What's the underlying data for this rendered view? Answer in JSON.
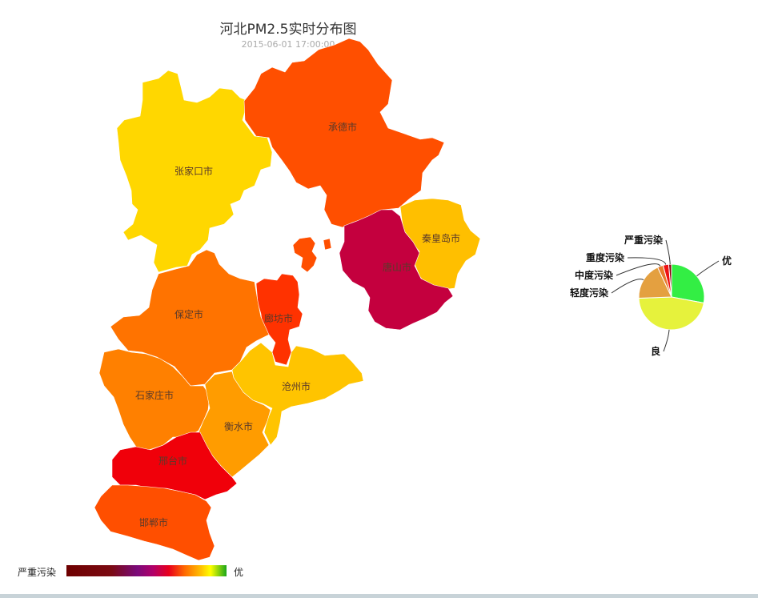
{
  "chart_data": [
    {
      "type": "map",
      "title": "河北PM2.5实时分布图",
      "subtitle": "2015-06-01 17:00:00",
      "regions": [
        {
          "name": "张家口市",
          "color": "#ffd700"
        },
        {
          "name": "承德市",
          "color": "#ff4f00"
        },
        {
          "name": "秦皇岛市",
          "color": "#ffbf00"
        },
        {
          "name": "唐山市",
          "color": "#c4003e"
        },
        {
          "name": "廊坊市",
          "color": "#ff3200"
        },
        {
          "name": "保定市",
          "color": "#ff7300"
        },
        {
          "name": "沧州市",
          "color": "#ffc400"
        },
        {
          "name": "石家庄市",
          "color": "#ff8000"
        },
        {
          "name": "衡水市",
          "color": "#ff9c00"
        },
        {
          "name": "邢台市",
          "color": "#f0000a"
        },
        {
          "name": "邯郸市",
          "color": "#ff4f00"
        }
      ],
      "visual_map": {
        "min_label": "严重污染",
        "max_label": "优"
      }
    },
    {
      "type": "pie",
      "slices": [
        {
          "name": "优",
          "value": 3,
          "color": "#33ee44"
        },
        {
          "name": "良",
          "value": 5,
          "color": "#e6f23c"
        },
        {
          "name": "轻度污染",
          "value": 2,
          "color": "#e4a040"
        },
        {
          "name": "中度污染",
          "value": 0.3,
          "color": "#e87a2a"
        },
        {
          "name": "重度污染",
          "value": 0.3,
          "color": "#ee1111"
        },
        {
          "name": "严重污染",
          "value": 0.15,
          "color": "#8a0010"
        }
      ]
    }
  ]
}
